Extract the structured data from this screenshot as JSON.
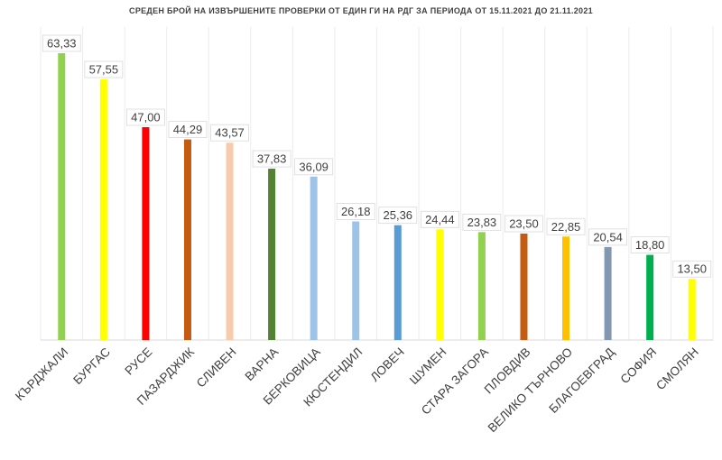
{
  "chart_data": {
    "type": "bar",
    "title": "СРЕДЕН БРОЙ НА ИЗВЪРШЕНИТЕ ПРОВЕРКИ ОТ ЕДИН ГИ НА РДГ ЗА ПЕРИОДА ОТ 15.11.2021 ДО 21.11.2021",
    "categories": [
      "КЪРДЖАЛИ",
      "БУРГАС",
      "РУСЕ",
      "ПАЗАРДЖИК",
      "СЛИВЕН",
      "ВАРНА",
      "БЕРКОВИЦА",
      "КЮСТЕНДИЛ",
      "ЛОВЕЧ",
      "ШУМЕН",
      "СТАРА ЗАГОРА",
      "ПЛОВДИВ",
      "ВЕЛИКО ТЪРНОВО",
      "БЛАГОЕВГРАД",
      "СОФИЯ",
      "СМОЛЯН"
    ],
    "values": [
      63.33,
      57.55,
      47.0,
      44.29,
      43.57,
      37.83,
      36.09,
      26.18,
      25.36,
      24.44,
      23.83,
      23.5,
      22.85,
      20.54,
      18.8,
      13.5
    ],
    "value_labels": [
      "63,33",
      "57,55",
      "47,00",
      "44,29",
      "43,57",
      "37,83",
      "36,09",
      "26,18",
      "25,36",
      "24,44",
      "23,83",
      "23,50",
      "22,85",
      "20,54",
      "18,80",
      "13,50"
    ],
    "colors": [
      "#92d050",
      "#ffff00",
      "#ff0000",
      "#c55a11",
      "#f8cbad",
      "#548235",
      "#9dc3e6",
      "#9dc3e6",
      "#5b9bd5",
      "#ffff00",
      "#92d050",
      "#c55a11",
      "#ffc000",
      "#8497b0",
      "#00b050",
      "#ffff00"
    ],
    "ylim": [
      0,
      64
    ],
    "grid": false,
    "legend": "none"
  }
}
